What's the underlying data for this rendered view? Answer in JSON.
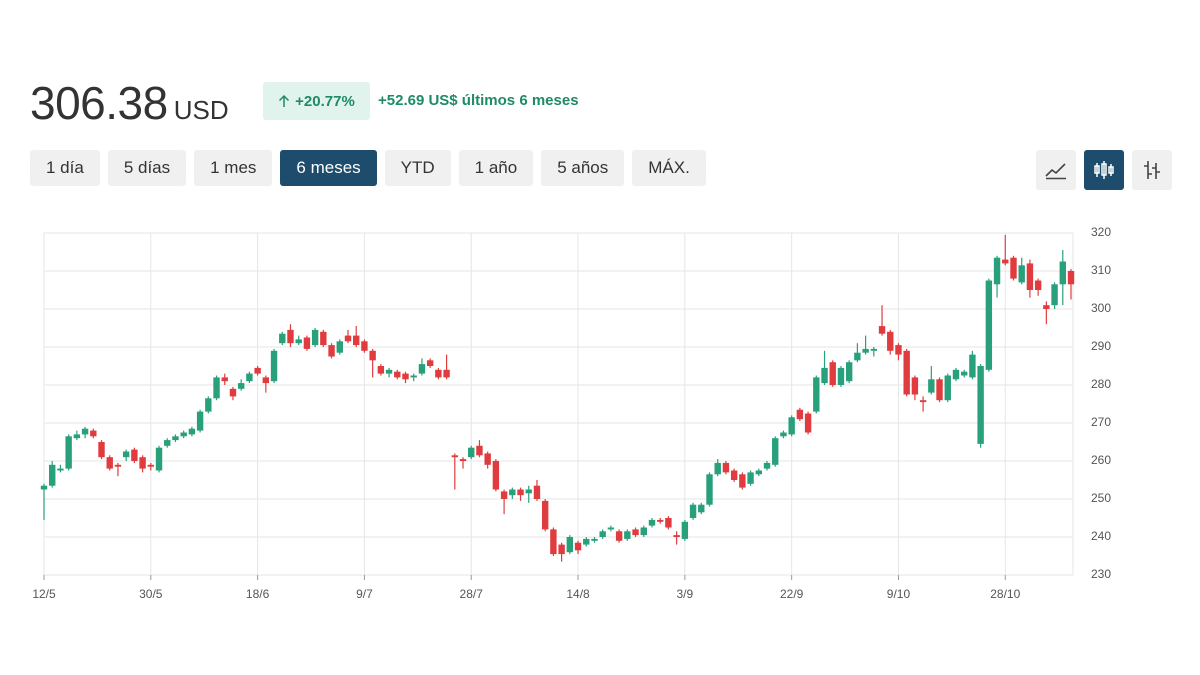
{
  "header": {
    "price": "306.38",
    "currency": "USD",
    "change_pct": "+20.77%",
    "change_abs": "+52.69 US$ últimos 6 meses"
  },
  "ranges": {
    "buttons": [
      "1 día",
      "5 días",
      "1 mes",
      "6 meses",
      "YTD",
      "1 año",
      "5 años",
      "MÁX."
    ],
    "active": 3
  },
  "chart_data": {
    "type": "candlestick",
    "categories": [
      "12/5",
      null,
      null,
      null,
      null,
      null,
      null,
      null,
      null,
      null,
      null,
      null,
      null,
      "30/5",
      null,
      null,
      null,
      null,
      null,
      null,
      null,
      null,
      null,
      null,
      null,
      null,
      "18/6",
      null,
      null,
      null,
      null,
      null,
      null,
      null,
      null,
      null,
      null,
      null,
      null,
      "9/7",
      null,
      null,
      null,
      null,
      null,
      null,
      null,
      null,
      null,
      null,
      null,
      null,
      "28/7",
      null,
      null,
      null,
      null,
      null,
      null,
      null,
      null,
      null,
      null,
      null,
      null,
      "14/8",
      null,
      null,
      null,
      null,
      null,
      null,
      null,
      null,
      null,
      null,
      null,
      null,
      "3/9",
      null,
      null,
      null,
      null,
      null,
      null,
      null,
      null,
      null,
      null,
      null,
      null,
      "22/9",
      null,
      null,
      null,
      null,
      null,
      null,
      null,
      null,
      null,
      null,
      null,
      null,
      "9/10",
      null,
      null,
      null,
      null,
      null,
      null,
      null,
      null,
      null,
      null,
      null,
      null,
      "28/10",
      null,
      null,
      null,
      null,
      null,
      null,
      null,
      null
    ],
    "open": [
      252.5,
      253.5,
      257.5,
      258,
      266,
      267,
      268,
      265,
      261,
      259,
      261,
      263,
      261,
      259,
      257.5,
      264,
      265.5,
      266.5,
      267,
      268,
      273,
      276.5,
      282,
      279,
      279,
      281,
      284.5,
      282,
      281,
      291,
      294.5,
      291,
      292.5,
      290.5,
      294,
      290.5,
      288.5,
      293,
      293,
      291.5,
      289,
      285,
      283,
      283.5,
      283,
      282,
      283,
      286.5,
      284,
      284,
      261.5,
      260.5,
      261,
      264,
      262,
      260,
      252,
      251,
      252.5,
      251.5,
      253.5,
      249.5,
      242,
      238,
      236,
      238.5,
      238,
      239,
      240,
      242,
      241.5,
      239.5,
      242,
      240.5,
      243,
      244.5,
      245,
      240.5,
      239.5,
      245,
      246.5,
      248.5,
      256.5,
      259.5,
      257.5,
      256.5,
      254,
      256.5,
      258,
      259,
      266.5,
      267,
      273.5,
      272.5,
      273,
      280.5,
      286,
      280,
      281,
      286.5,
      288.5,
      289,
      295.5,
      294,
      290.5,
      289,
      282,
      276,
      278,
      281.5,
      276,
      281.5,
      282.5,
      282,
      264.5,
      284,
      306.5,
      313,
      313.5,
      307,
      312,
      307.5,
      301,
      301,
      306.5,
      310
    ],
    "high": [
      254,
      260,
      259,
      267,
      268,
      269,
      268.5,
      265.5,
      261.5,
      259.5,
      263,
      263.5,
      261.5,
      259.5,
      264,
      266,
      267,
      268,
      269,
      273.5,
      277,
      282.5,
      283,
      279.5,
      281.5,
      283.5,
      285,
      282.5,
      289.5,
      294,
      296,
      293,
      293,
      295,
      294.5,
      291,
      292,
      294.5,
      295.5,
      292,
      289.5,
      285.5,
      284.5,
      284,
      283.5,
      283,
      287,
      287,
      284.5,
      288,
      262,
      261,
      264,
      265.5,
      262.5,
      260.5,
      252.5,
      253,
      253,
      253.5,
      255,
      250,
      242.5,
      238.5,
      240.5,
      239,
      240,
      240,
      242,
      243,
      242,
      242,
      242.5,
      243,
      245,
      245,
      245.5,
      241.5,
      244.5,
      249,
      249,
      257,
      260.5,
      260,
      258,
      257,
      257.5,
      258,
      260,
      266.5,
      268,
      272,
      274,
      273,
      282.5,
      289,
      286.5,
      285,
      286.5,
      291,
      293,
      290,
      301,
      294.5,
      291,
      289.5,
      282.5,
      277,
      285,
      282,
      283,
      284.5,
      284,
      289,
      285.5,
      308,
      314,
      319.5,
      314,
      313.5,
      313,
      308,
      302,
      307,
      315.5,
      310.5
    ],
    "low": [
      244.5,
      253,
      257,
      257.5,
      265.5,
      266,
      266,
      260.5,
      257.5,
      256,
      260,
      259.5,
      257,
      257.5,
      257,
      263.5,
      265,
      266,
      266.5,
      267.5,
      272.5,
      276,
      280,
      276,
      278.5,
      280.5,
      282.5,
      278,
      280.5,
      290.5,
      290,
      290.5,
      289,
      290,
      290,
      287,
      288,
      291,
      290,
      288.5,
      282,
      282.5,
      282,
      281.5,
      280.5,
      281,
      282.5,
      284.5,
      281.5,
      281.5,
      252.5,
      258,
      260.5,
      261,
      258,
      252,
      246,
      250,
      249.5,
      249,
      249.5,
      241.5,
      235,
      233.5,
      235.5,
      235.5,
      237.5,
      238.5,
      239.5,
      241.5,
      238.5,
      239,
      240,
      240,
      242.5,
      243.5,
      242,
      238,
      239,
      244.5,
      246,
      248,
      256,
      256.5,
      254.5,
      252.5,
      253.5,
      256,
      257.5,
      258.5,
      266,
      266.5,
      270.5,
      267,
      272.5,
      280,
      279.5,
      279.5,
      280.5,
      286,
      288,
      287.5,
      293,
      288,
      286.5,
      277,
      276,
      273,
      277.5,
      275.5,
      275.5,
      281,
      282,
      281.5,
      263.5,
      283.5,
      303,
      311.5,
      307.5,
      306.5,
      303,
      303.5,
      296,
      300,
      301,
      302.5
    ],
    "close": [
      253.5,
      259,
      258,
      266.5,
      267,
      268.5,
      266.5,
      261,
      258,
      258.5,
      262.5,
      260,
      258,
      258.5,
      263.5,
      265.5,
      266.5,
      267.5,
      268.5,
      273,
      276.5,
      282,
      281,
      277,
      280.5,
      283,
      283,
      280.5,
      289,
      293.5,
      291,
      292,
      289.5,
      294.5,
      290.5,
      287.5,
      291.5,
      291.5,
      290.5,
      289,
      286.5,
      283,
      284,
      282,
      281.5,
      282.5,
      285.5,
      285,
      282,
      282,
      261,
      260,
      263.5,
      261.5,
      259,
      252.5,
      250,
      252.5,
      251,
      252.5,
      250,
      242,
      235.5,
      235.5,
      240,
      236.5,
      239.5,
      239.5,
      241.5,
      242.5,
      239,
      241.5,
      240.5,
      242.5,
      244.5,
      244,
      242.5,
      240,
      244,
      248.5,
      248.5,
      256.5,
      259.5,
      257,
      255,
      253,
      257,
      257.5,
      259.5,
      266,
      267.5,
      271.5,
      271,
      267.5,
      282,
      284.5,
      280,
      284.5,
      286,
      288.5,
      289.5,
      289.5,
      293.5,
      289,
      288,
      277.5,
      277.5,
      275.5,
      281.5,
      276,
      282.5,
      284,
      283.5,
      288,
      285,
      307.5,
      313.5,
      312,
      308,
      311.5,
      305,
      305,
      300,
      306.5,
      312.5,
      306.5
    ],
    "up_color": "#28a07c",
    "down_color": "#e03c3f",
    "ylim": [
      230,
      320
    ],
    "yticks": [
      230,
      240,
      250,
      260,
      270,
      280,
      290,
      300,
      310,
      320
    ],
    "grid": true
  }
}
